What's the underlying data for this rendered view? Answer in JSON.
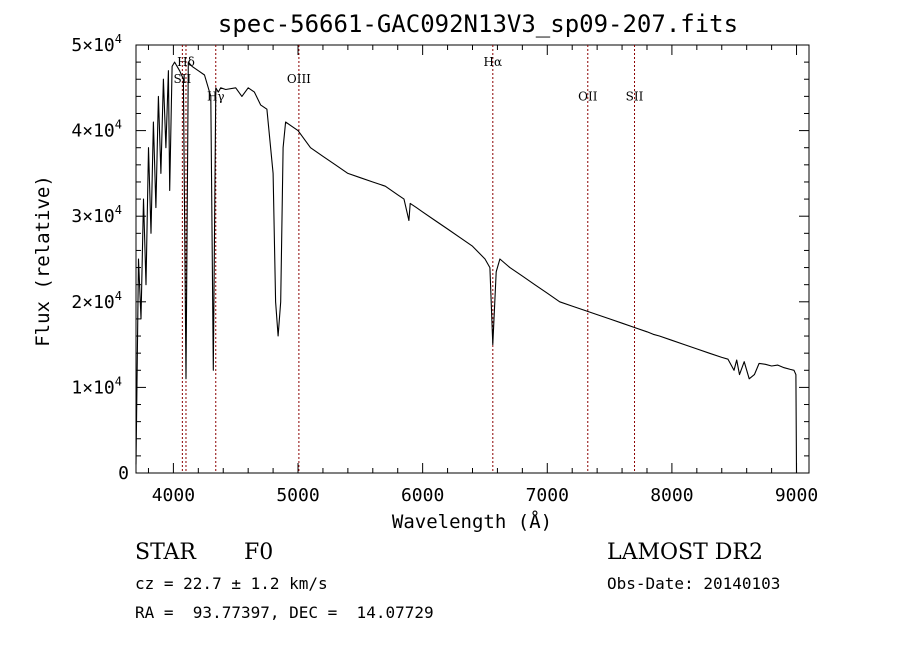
{
  "chart_data": {
    "type": "line",
    "title": "spec-56661-GAC092N13V3_sp09-207.fits",
    "xlabel": "Wavelength (Å)",
    "ylabel": "Flux (relative)",
    "xlim": [
      3700,
      9100
    ],
    "ylim": [
      0,
      50000
    ],
    "x_ticks": [
      4000,
      5000,
      6000,
      7000,
      8000,
      9000
    ],
    "x_tick_labels": [
      "4000",
      "5000",
      "6000",
      "7000",
      "8000",
      "9000"
    ],
    "y_ticks": [
      0,
      10000,
      20000,
      30000,
      40000,
      50000
    ],
    "y_tick_labels": [
      {
        "base": "0",
        "exp": ""
      },
      {
        "base": "1×10",
        "exp": "4"
      },
      {
        "base": "2×10",
        "exp": "4"
      },
      {
        "base": "3×10",
        "exp": "4"
      },
      {
        "base": "4×10",
        "exp": "4"
      },
      {
        "base": "5×10",
        "exp": "4"
      }
    ],
    "grid": false,
    "line_color": "#000000",
    "marker_color": "#8b0000",
    "series": [
      {
        "x": [
          3700,
          3720,
          3740,
          3760,
          3780,
          3800,
          3820,
          3840,
          3860,
          3880,
          3900,
          3920,
          3940,
          3960,
          3970,
          3990,
          4010,
          4050,
          4080,
          4101,
          4120,
          4150,
          4200,
          4250,
          4300,
          4320,
          4340,
          4360,
          4380,
          4420,
          4500,
          4550,
          4600,
          4650,
          4700,
          4750,
          4800,
          4820,
          4840,
          4861,
          4880,
          4900,
          4950,
          5000,
          5100,
          5200,
          5300,
          5400,
          5500,
          5600,
          5700,
          5800,
          5850,
          5890,
          5900,
          5950,
          6000,
          6100,
          6200,
          6300,
          6400,
          6500,
          6540,
          6563,
          6590,
          6620,
          6700,
          6800,
          6900,
          7000,
          7100,
          7200,
          7300,
          7400,
          7500,
          7600,
          7700,
          7800,
          7850,
          7900,
          8000,
          8100,
          8200,
          8300,
          8400,
          8450,
          8498,
          8520,
          8542,
          8580,
          8620,
          8662,
          8700,
          8750,
          8800,
          8850,
          8900,
          8950,
          8980,
          8995,
          9000
        ],
        "y": [
          1000,
          25000,
          18000,
          32000,
          22000,
          38000,
          28000,
          41000,
          31000,
          44000,
          35000,
          46000,
          38000,
          47000,
          33000,
          47500,
          48000,
          47000,
          46000,
          11000,
          48000,
          47500,
          47000,
          46500,
          44000,
          12000,
          45000,
          44500,
          45000,
          44800,
          45000,
          44000,
          45000,
          44500,
          43000,
          42500,
          35000,
          20000,
          16000,
          20000,
          38000,
          41000,
          40500,
          40000,
          38000,
          37000,
          36000,
          35000,
          34500,
          34000,
          33500,
          32500,
          32000,
          29500,
          31500,
          31000,
          30500,
          29500,
          28500,
          27500,
          26500,
          25000,
          24000,
          15000,
          23500,
          25000,
          24000,
          23000,
          22000,
          21000,
          20000,
          19500,
          19000,
          18500,
          18000,
          17500,
          17000,
          16500,
          16200,
          16000,
          15500,
          15000,
          14500,
          14000,
          13500,
          13300,
          12000,
          13200,
          11500,
          13000,
          11000,
          11500,
          12800,
          12700,
          12500,
          12600,
          12300,
          12100,
          12000,
          11500,
          0
        ]
      }
    ],
    "line_markers": [
      {
        "label": "Hδ",
        "x": 4101,
        "label_y": 48000
      },
      {
        "label": "SII",
        "x": 4072,
        "label_y": 46000
      },
      {
        "label": "Hγ",
        "x": 4340,
        "label_y": 44000
      },
      {
        "label": "OIII",
        "x": 5007,
        "label_y": 46000
      },
      {
        "label": "Hα",
        "x": 6563,
        "label_y": 48000
      },
      {
        "label": "OII",
        "x": 7325,
        "label_y": 44000
      },
      {
        "label": "SII",
        "x": 7700,
        "label_y": 44000
      }
    ]
  },
  "info": {
    "object_class": "STAR",
    "subclass": "F0",
    "survey": "LAMOST DR2",
    "cz": "cz = 22.7 ± 1.2 km/s",
    "obs_date": "Obs-Date: 20140103",
    "coords": "RA =  93.77397, DEC =  14.07729"
  }
}
